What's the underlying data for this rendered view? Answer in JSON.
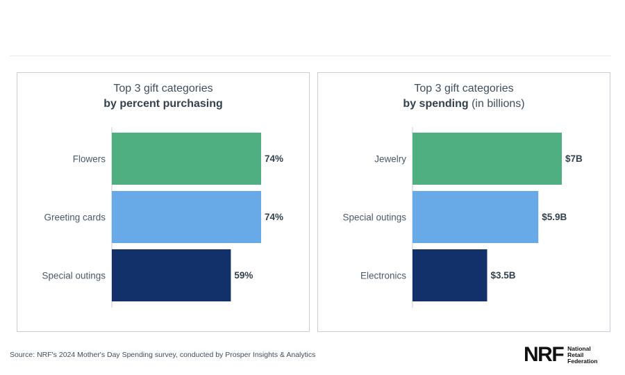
{
  "chart_data": [
    {
      "type": "bar",
      "orientation": "horizontal",
      "title_line1": "Top 3 gift categories",
      "title_bold": "by percent purchasing",
      "title_rest": "",
      "categories": [
        "Flowers",
        "Greeting cards",
        "Special outings"
      ],
      "values": [
        74,
        74,
        59
      ],
      "value_labels": [
        "74%",
        "74%",
        "59%"
      ],
      "colors": [
        "#4faf80",
        "#68a9e8",
        "#12306a"
      ],
      "xlim": [
        0,
        74
      ],
      "unit": "%"
    },
    {
      "type": "bar",
      "orientation": "horizontal",
      "title_line1": "Top 3 gift categories",
      "title_bold": "by spending",
      "title_rest": " (in billions)",
      "categories": [
        "Jewelry",
        "Special outings",
        "Electronics"
      ],
      "values": [
        7,
        5.9,
        3.5
      ],
      "value_labels": [
        "$7B",
        "$5.9B",
        "$3.5B"
      ],
      "colors": [
        "#4faf80",
        "#68a9e8",
        "#12306a"
      ],
      "xlim": [
        0,
        7
      ],
      "unit": "$B"
    }
  ],
  "footer": {
    "source": "Source: NRF's 2024 Mother's Day Spending survey, conducted by Prosper Insights & Analytics"
  },
  "logo": {
    "mark": "NRF",
    "line1": "National",
    "line2": "Retail",
    "line3": "Federation"
  }
}
